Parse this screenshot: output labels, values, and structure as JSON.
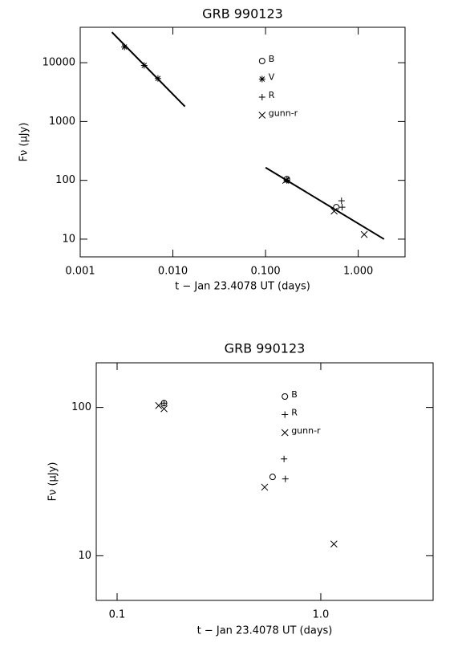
{
  "chart_data": [
    {
      "type": "scatter",
      "title": "GRB 990123",
      "x_label": "t − Jan 23.4078 UT (days)",
      "y_label": "Fν (μJy)",
      "xscale": "log",
      "yscale": "log",
      "legend": "top-right",
      "xlim": [
        0.001,
        3.2
      ],
      "ylim": [
        5,
        40000
      ],
      "xticks": [
        0.001,
        {
          "value": 0.01,
          "label": "0.010"
        },
        {
          "value": 0.1,
          "label": "0.100"
        },
        {
          "value": 1,
          "label": "1.000"
        }
      ],
      "yticks": [
        10,
        100,
        1000,
        10000
      ],
      "series": [
        {
          "name": "B",
          "marker": "circle",
          "x": [
            0.17,
            0.58
          ],
          "values": [
            105,
            35
          ]
        },
        {
          "name": "V",
          "marker": "asterisk",
          "x": [
            0.003,
            0.0049,
            0.0069,
            0.17
          ],
          "values": [
            18500,
            9000,
            5400,
            100
          ]
        },
        {
          "name": "R",
          "marker": "plus",
          "x": [
            0.17,
            0.66,
            0.67
          ],
          "values": [
            100,
            45,
            35
          ]
        },
        {
          "name": "gunn-r",
          "marker": "x",
          "x": [
            0.165,
            0.55,
            1.16
          ],
          "values": [
            100,
            30,
            12
          ]
        }
      ],
      "fits": [
        {
          "x": [
            0.0022,
            0.0135
          ],
          "values": [
            33000,
            1800
          ]
        },
        {
          "x": [
            0.1,
            1.9
          ],
          "values": [
            165,
            10
          ]
        }
      ]
    },
    {
      "type": "scatter",
      "title": "GRB 990123",
      "x_label": "t − Jan 23.4078 UT (days)",
      "y_label": "Fν (μJy)",
      "xscale": "log",
      "yscale": "log",
      "legend": "top-right",
      "xlim": [
        0.079,
        3.56
      ],
      "ylim": [
        5,
        200
      ],
      "xticks": [
        0.1,
        {
          "value": 1,
          "label": "1.0"
        }
      ],
      "yticks": [
        10,
        100
      ],
      "series": [
        {
          "name": "B",
          "marker": "circle",
          "x": [
            0.17,
            0.58
          ],
          "values": [
            107,
            34
          ]
        },
        {
          "name": "R",
          "marker": "plus",
          "x": [
            0.17,
            0.66,
            0.67
          ],
          "values": [
            107,
            45,
            33
          ]
        },
        {
          "name": "gunn-r",
          "marker": "x",
          "x": [
            0.16,
            0.17,
            0.53,
            1.16
          ],
          "values": [
            103,
            98,
            29,
            12
          ]
        }
      ]
    }
  ]
}
